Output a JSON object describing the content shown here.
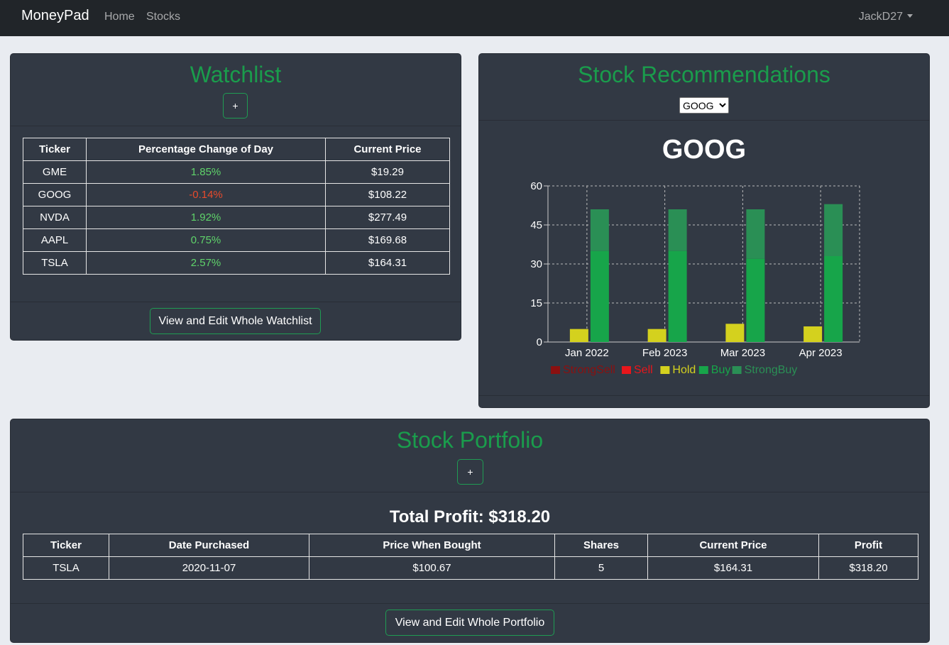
{
  "navbar": {
    "brand": "MoneyPad",
    "links": [
      "Home",
      "Stocks"
    ],
    "user": "JackD27"
  },
  "watchlist": {
    "title": "Watchlist",
    "add_label": "+",
    "columns": [
      "Ticker",
      "Percentage Change of Day",
      "Current Price"
    ],
    "rows": [
      {
        "ticker": "GME",
        "change": "1.85%",
        "direction": "up",
        "price": "$19.29"
      },
      {
        "ticker": "GOOG",
        "change": "-0.14%",
        "direction": "down",
        "price": "$108.22"
      },
      {
        "ticker": "NVDA",
        "change": "1.92%",
        "direction": "up",
        "price": "$277.49"
      },
      {
        "ticker": "AAPL",
        "change": "0.75%",
        "direction": "up",
        "price": "$169.68"
      },
      {
        "ticker": "TSLA",
        "change": "2.57%",
        "direction": "up",
        "price": "$164.31"
      }
    ],
    "footer_button": "View and Edit Whole Watchlist"
  },
  "recommendations": {
    "title": "Stock Recommendations",
    "selected_ticker": "GOOG",
    "options": [
      "GOOG"
    ]
  },
  "chart_data": {
    "type": "bar",
    "title": "GOOG",
    "categories": [
      "Jan 2022",
      "Feb 2023",
      "Mar 2023",
      "Apr 2023"
    ],
    "ylim": [
      0,
      60
    ],
    "yticks": [
      0,
      15,
      30,
      45,
      60
    ],
    "grid": true,
    "legend_position": "bottom",
    "series": [
      {
        "name": "StrongSell",
        "color": "#8b1010",
        "stack": "b",
        "values": [
          0,
          0,
          0,
          0
        ]
      },
      {
        "name": "Sell",
        "color": "#e8161b",
        "stack": "b",
        "values": [
          0,
          0,
          0,
          0
        ]
      },
      {
        "name": "Hold",
        "color": "#d4d11e",
        "stack": "a",
        "values": [
          5,
          5,
          7,
          6
        ]
      },
      {
        "name": "Buy",
        "color": "#17a54a",
        "stack": "b",
        "values": [
          35,
          35,
          32,
          33
        ]
      },
      {
        "name": "StrongBuy",
        "color": "#2a8f55",
        "stack": "b",
        "values": [
          16,
          16,
          19,
          20
        ]
      }
    ]
  },
  "portfolio": {
    "title": "Stock Portfolio",
    "add_label": "+",
    "total_profit": "Total Profit: $318.20",
    "columns": [
      "Ticker",
      "Date Purchased",
      "Price When Bought",
      "Shares",
      "Current Price",
      "Profit"
    ],
    "rows": [
      {
        "ticker": "TSLA",
        "date": "2020-11-07",
        "bought": "$100.67",
        "shares": "5",
        "current": "$164.31",
        "profit": "$318.20"
      }
    ],
    "footer_button": "View and Edit Whole Portfolio"
  }
}
